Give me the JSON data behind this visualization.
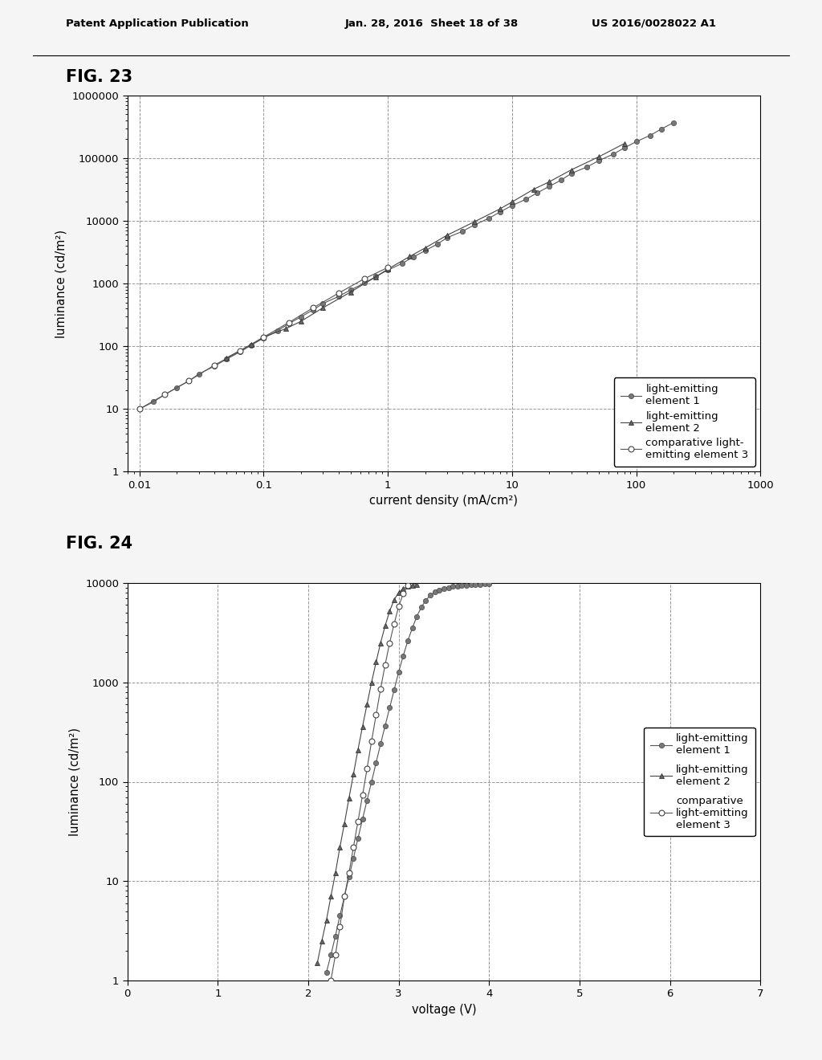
{
  "header_left": "Patent Application Publication",
  "header_mid": "Jan. 28, 2016  Sheet 18 of 38",
  "header_right": "US 2016/0028022 A1",
  "fig23_label": "FIG. 23",
  "fig24_label": "FIG. 24",
  "fig23_xlabel": "current density (mA/cm²)",
  "fig23_ylabel": "luminance (cd/m²)",
  "fig24_xlabel": "voltage (V)",
  "fig24_ylabel": "luminance (cd/m²)",
  "legend1_e1": "light-emitting\nelement 1",
  "legend1_e2": "light-emitting\nelement 2",
  "legend1_e3": "comparative light-\nemitting element 3",
  "legend2_e1": "light-emitting\nelement 1",
  "legend2_e2": "light-emitting\nelement 2",
  "legend2_e3": "comparative\nlight-emitting\nelement 3",
  "bg_color": "#f5f5f5",
  "plot_bg": "#ffffff",
  "grid_color": "#999999",
  "marker_color": "#666666",
  "fig23_xlim_log": [
    -2,
    3
  ],
  "fig23_ylim_log": [
    0,
    6
  ],
  "fig24_xlim": [
    0,
    7
  ],
  "fig24_ylim_log": [
    0,
    4
  ]
}
